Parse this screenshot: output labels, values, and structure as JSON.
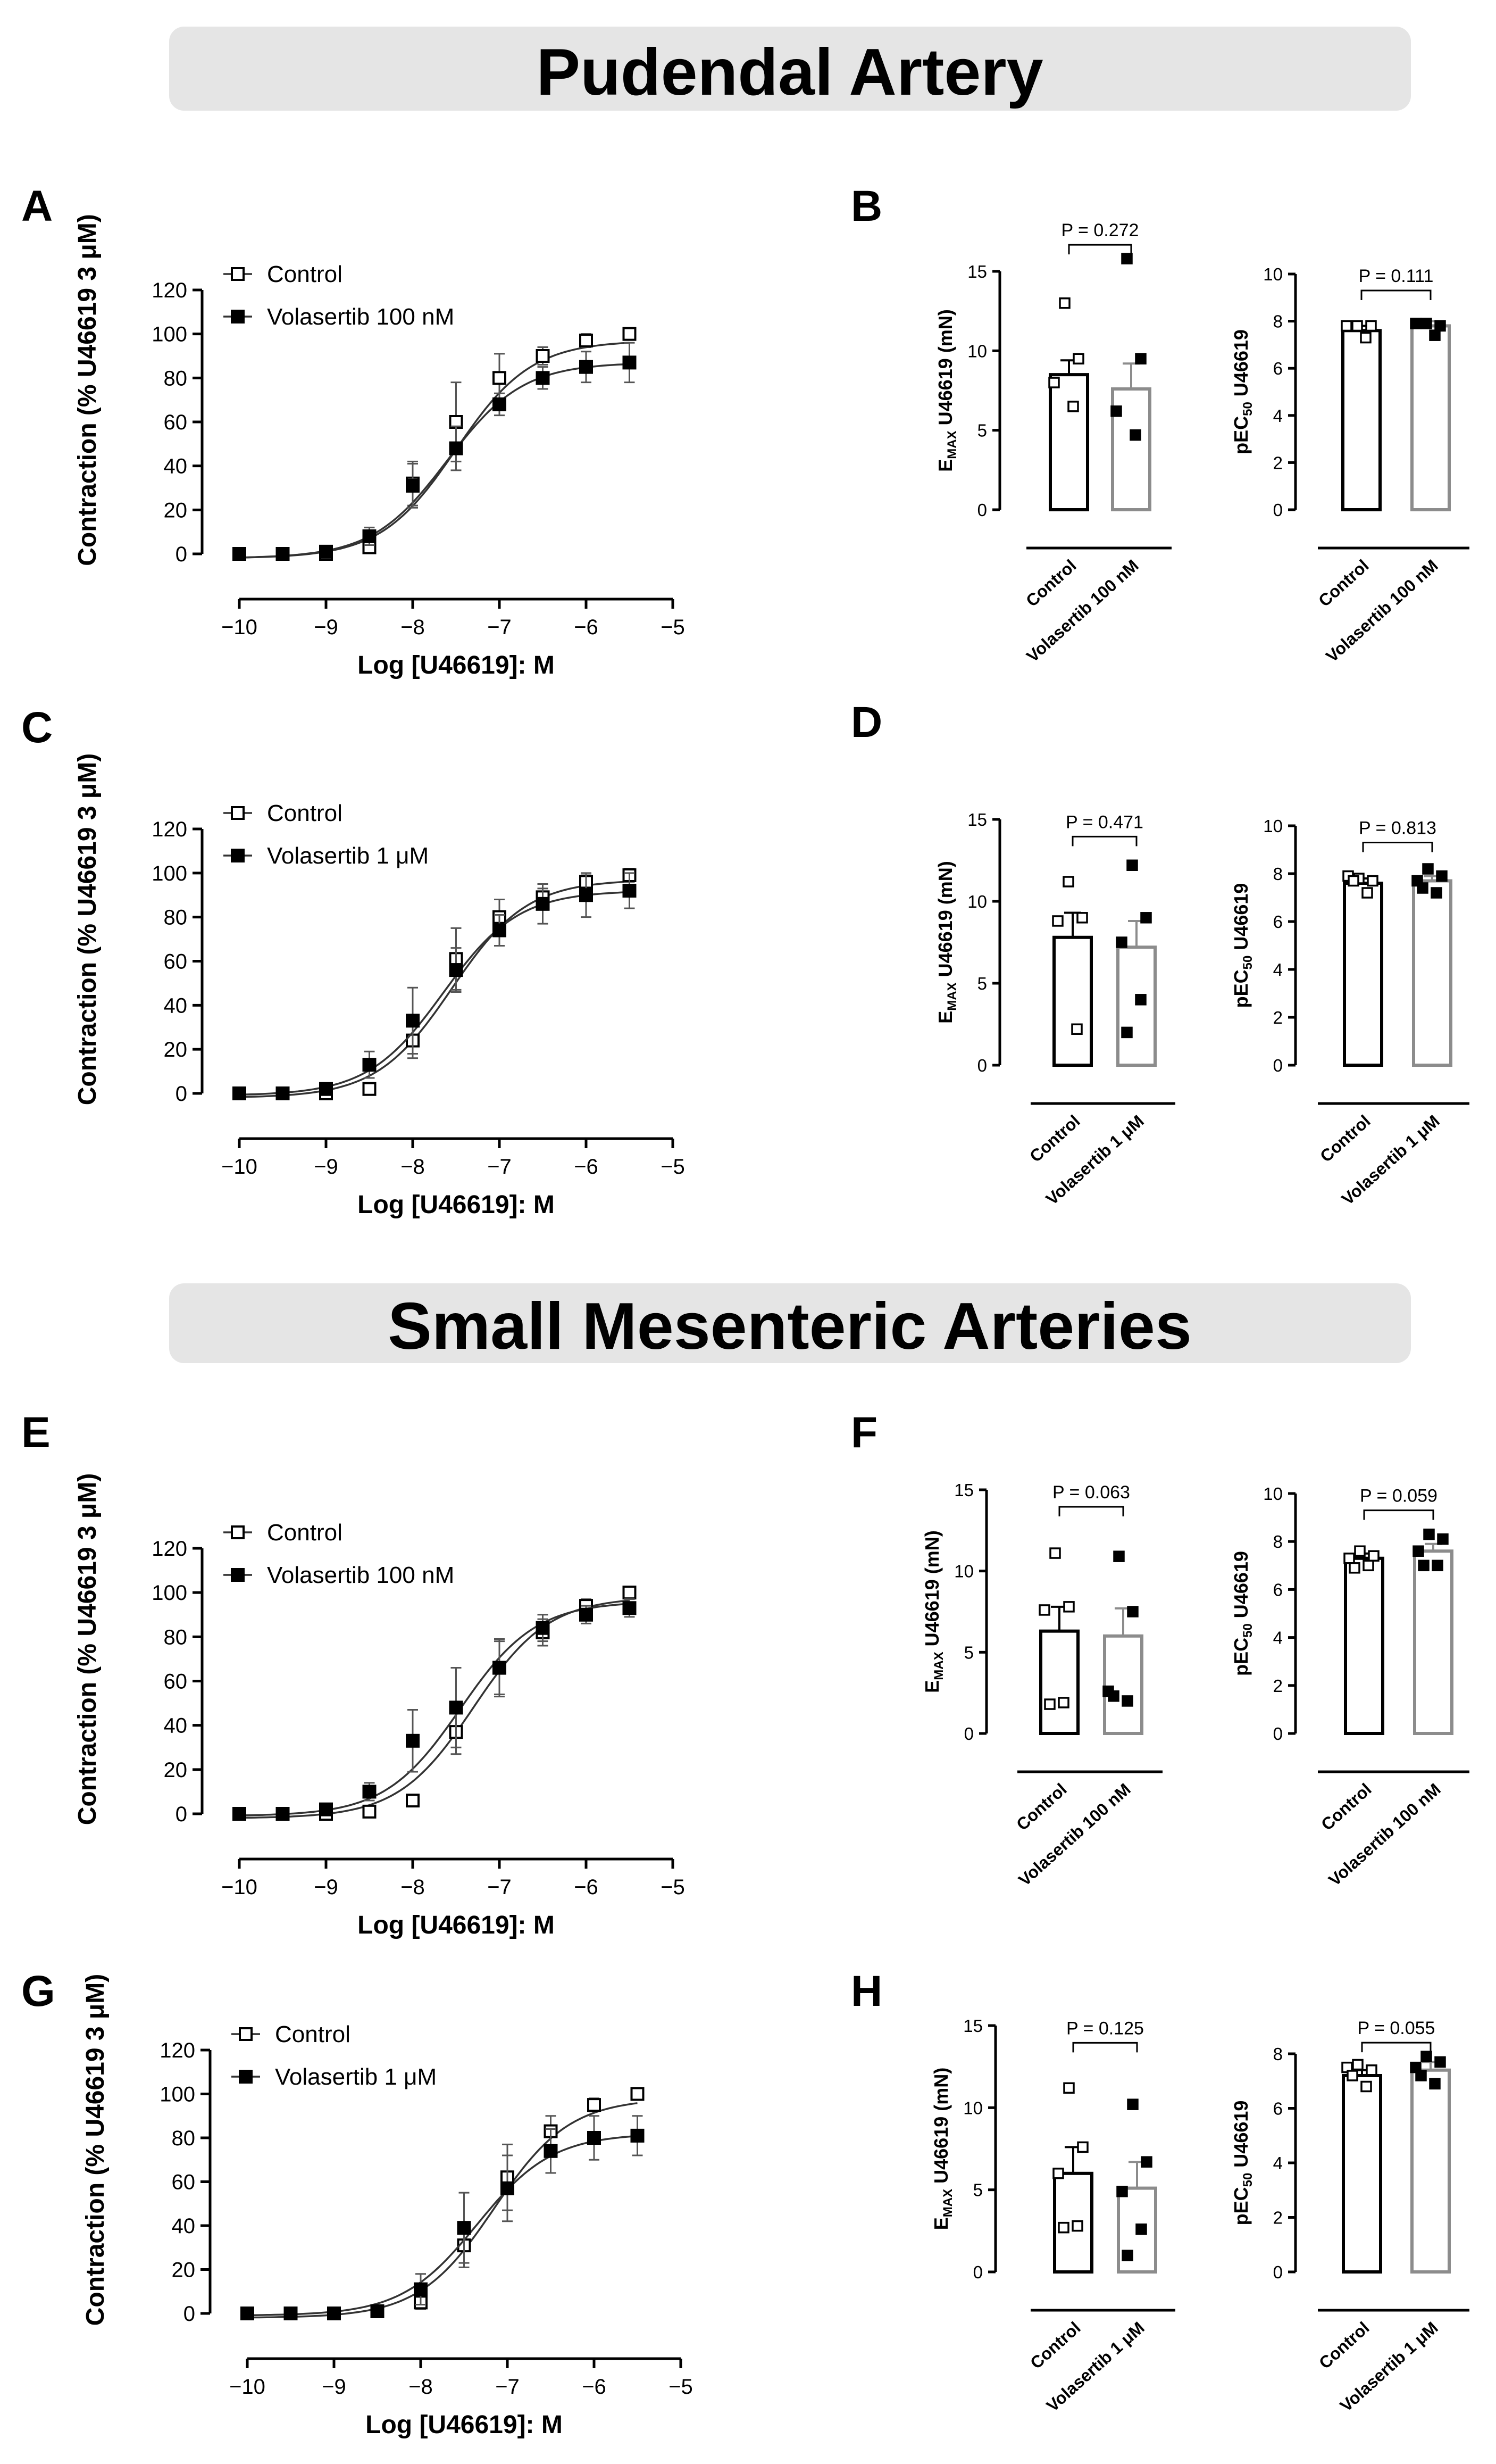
{
  "banners": [
    "Pudendal Artery",
    "Small Mesenteric Arteries"
  ],
  "x_ticks": [
    "−10",
    "−9",
    "−8",
    "−7",
    "−6",
    "−5"
  ],
  "chart_data": [
    {
      "panel": "A",
      "type": "line",
      "ylabel": "Contraction (% U46619 3 μM)",
      "xlabel": "Log [U46619]: M",
      "xlim": [
        -10,
        -5
      ],
      "ylim": [
        0,
        120
      ],
      "yticks": [
        0,
        20,
        40,
        60,
        80,
        100,
        120
      ],
      "legend": "top-left",
      "series": [
        {
          "name": "Control",
          "marker": "open-square",
          "top": 97,
          "bottom": -2,
          "logec50": -7.5,
          "x": [
            -10,
            -9.5,
            -9,
            -8.5,
            -8,
            -7.5,
            -7,
            -6.5,
            -6,
            -5.5
          ],
          "y": [
            0,
            0,
            0,
            3,
            32,
            60,
            80,
            90,
            97,
            100
          ],
          "err": [
            1,
            1,
            1,
            2,
            10,
            18,
            11,
            4,
            3,
            2
          ]
        },
        {
          "name": "Volasertib 100 nM",
          "marker": "filled-square",
          "top": 87,
          "bottom": -2,
          "logec50": -7.6,
          "x": [
            -10,
            -9.5,
            -9,
            -8.5,
            -8,
            -7.5,
            -7,
            -6.5,
            -6,
            -5.5
          ],
          "y": [
            0,
            0,
            1,
            8,
            31,
            48,
            68,
            80,
            85,
            87
          ],
          "err": [
            1,
            1,
            1,
            4,
            10,
            10,
            5,
            5,
            7,
            9
          ]
        }
      ]
    },
    {
      "panel": "B",
      "type": "bar",
      "categories": [
        "Control",
        "Volasertib 100 nM"
      ],
      "subcharts": [
        {
          "ylabel": "EMAX U46619 (mN)",
          "ylim": [
            0,
            15
          ],
          "yticks": [
            0,
            5,
            10,
            15
          ],
          "p_value": "P = 0.272",
          "values": [
            8.5,
            7.6
          ],
          "errors": [
            0.9,
            1.6
          ],
          "points": [
            [
              13.0,
              9.5,
              8.0,
              6.5
            ],
            [
              15.8,
              9.5,
              6.2,
              4.7
            ]
          ]
        },
        {
          "ylabel": "pEC50 U46619",
          "ylim": [
            0,
            10
          ],
          "yticks": [
            0,
            2,
            4,
            6,
            8,
            10
          ],
          "p_value": "P = 0.111",
          "values": [
            7.6,
            7.8
          ],
          "errors": [
            0.2,
            0.2
          ],
          "points": [
            [
              7.8,
              7.8,
              7.8,
              7.3
            ],
            [
              7.9,
              7.8,
              7.9,
              7.4
            ]
          ]
        }
      ]
    },
    {
      "panel": "C",
      "type": "line",
      "ylabel": "Contraction (% U46619 3 μM)",
      "xlabel": "Log [U46619]: M",
      "xlim": [
        -10,
        -5
      ],
      "ylim": [
        0,
        120
      ],
      "yticks": [
        0,
        20,
        40,
        60,
        80,
        100,
        120
      ],
      "legend": "top-left",
      "series": [
        {
          "name": "Control",
          "marker": "open-square",
          "top": 97,
          "bottom": -2,
          "logec50": -7.55,
          "x": [
            -10,
            -9.5,
            -9,
            -8.5,
            -8,
            -7.5,
            -7,
            -6.5,
            -6,
            -5.5
          ],
          "y": [
            0,
            0,
            0,
            2,
            24,
            61,
            80,
            89,
            96,
            99
          ],
          "err": [
            1,
            1,
            1,
            1,
            8,
            14,
            8,
            4,
            3,
            3
          ]
        },
        {
          "name": "Volasertib 1 μM",
          "marker": "filled-square",
          "top": 92,
          "bottom": -1,
          "logec50": -7.65,
          "x": [
            -10,
            -9.5,
            -9,
            -8.5,
            -8,
            -7.5,
            -7,
            -6.5,
            -6,
            -5.5
          ],
          "y": [
            0,
            0,
            2,
            13,
            33,
            56,
            74,
            86,
            90,
            92
          ],
          "err": [
            1,
            1,
            2,
            6,
            15,
            10,
            7,
            9,
            10,
            8
          ]
        }
      ]
    },
    {
      "panel": "D",
      "type": "bar",
      "categories": [
        "Control",
        "Volasertib 1 μM"
      ],
      "subcharts": [
        {
          "ylabel": "EMAX U46619 (mN)",
          "ylim": [
            0,
            15
          ],
          "yticks": [
            0,
            5,
            10,
            15
          ],
          "p_value": "P = 0.471",
          "values": [
            7.8,
            7.2
          ],
          "errors": [
            1.5,
            1.6
          ],
          "points": [
            [
              11.2,
              9.0,
              8.8,
              2.2
            ],
            [
              12.2,
              9.0,
              7.5,
              4.0,
              2.0
            ]
          ]
        },
        {
          "ylabel": "pEC50 U46619",
          "ylim": [
            0,
            10
          ],
          "yticks": [
            0,
            2,
            4,
            6,
            8,
            10
          ],
          "p_value": "P = 0.813",
          "values": [
            7.6,
            7.7
          ],
          "errors": [
            0.2,
            0.2
          ],
          "points": [
            [
              7.8,
              7.7,
              7.9,
              7.2,
              7.7
            ],
            [
              8.2,
              7.9,
              7.7,
              7.2,
              7.4
            ]
          ]
        }
      ]
    },
    {
      "panel": "E",
      "type": "line",
      "ylabel": "Contraction (% U46619 3 μM)",
      "xlabel": "Log [U46619]: M",
      "xlim": [
        -10,
        -5
      ],
      "ylim": [
        0,
        120
      ],
      "yticks": [
        0,
        20,
        40,
        60,
        80,
        100,
        120
      ],
      "legend": "top-left",
      "series": [
        {
          "name": "Control",
          "marker": "open-square",
          "top": 98,
          "bottom": -2,
          "logec50": -7.3,
          "x": [
            -10,
            -9.5,
            -9,
            -8.5,
            -8,
            -7.5,
            -7,
            -6.5,
            -6,
            -5.5
          ],
          "y": [
            0,
            0,
            0,
            1,
            6,
            37,
            66,
            82,
            94,
            100
          ],
          "err": [
            1,
            1,
            1,
            1,
            2,
            10,
            13,
            6,
            3,
            2
          ]
        },
        {
          "name": "Volasertib 100 nM",
          "marker": "filled-square",
          "top": 96,
          "bottom": -1,
          "logec50": -7.45,
          "x": [
            -10,
            -9.5,
            -9,
            -8.5,
            -8,
            -7.5,
            -7,
            -6.5,
            -6,
            -5.5
          ],
          "y": [
            0,
            0,
            2,
            10,
            33,
            48,
            66,
            84,
            90,
            93
          ],
          "err": [
            1,
            1,
            1,
            4,
            14,
            18,
            12,
            6,
            4,
            4
          ]
        }
      ]
    },
    {
      "panel": "F",
      "type": "bar",
      "categories": [
        "Control",
        "Volasertib 100 nM"
      ],
      "subcharts": [
        {
          "ylabel": "EMAX U46619 (mN)",
          "ylim": [
            0,
            15
          ],
          "yticks": [
            0,
            5,
            10,
            15
          ],
          "p_value": "P = 0.063",
          "values": [
            6.3,
            6.0
          ],
          "errors": [
            1.5,
            1.7
          ],
          "points": [
            [
              11.1,
              7.8,
              7.6,
              1.9,
              1.8
            ],
            [
              10.9,
              7.5,
              2.6,
              2.0,
              2.3
            ]
          ]
        },
        {
          "ylabel": "pEC50 U46619",
          "ylim": [
            0,
            10
          ],
          "yticks": [
            0,
            2,
            4,
            6,
            8,
            10
          ],
          "p_value": "P = 0.059",
          "values": [
            7.3,
            7.6
          ],
          "errors": [
            0.2,
            0.3
          ],
          "points": [
            [
              7.6,
              7.4,
              7.3,
              7.0,
              6.9
            ],
            [
              8.3,
              8.1,
              7.6,
              7.0,
              7.0
            ]
          ]
        }
      ]
    },
    {
      "panel": "G",
      "type": "line",
      "ylabel": "Contraction (% U46619 3 μM)",
      "xlabel": "Log [U46619]: M",
      "xlim": [
        -10,
        -5
      ],
      "ylim": [
        0,
        120
      ],
      "yticks": [
        0,
        20,
        40,
        60,
        80,
        100,
        120
      ],
      "legend": "top-left",
      "series": [
        {
          "name": "Control",
          "marker": "open-square",
          "top": 98,
          "bottom": -2,
          "logec50": -7.15,
          "x": [
            -10,
            -9.5,
            -9,
            -8.5,
            -8,
            -7.5,
            -7,
            -6.5,
            -6,
            -5.5
          ],
          "y": [
            0,
            0,
            0,
            1,
            5,
            31,
            62,
            83,
            95,
            100
          ],
          "err": [
            1,
            1,
            1,
            1,
            3,
            10,
            15,
            7,
            3,
            2
          ]
        },
        {
          "name": "Volasertib 1 μM",
          "marker": "filled-square",
          "top": 82,
          "bottom": -1,
          "logec50": -7.35,
          "x": [
            -10,
            -9.5,
            -9,
            -8.5,
            -8,
            -7.5,
            -7,
            -6.5,
            -6,
            -5.5
          ],
          "y": [
            0,
            0,
            0,
            1,
            11,
            39,
            57,
            74,
            80,
            81
          ],
          "err": [
            1,
            1,
            1,
            1,
            7,
            16,
            15,
            10,
            10,
            9
          ]
        }
      ]
    },
    {
      "panel": "H",
      "type": "bar",
      "categories": [
        "Control",
        "Volasertib 1 μM"
      ],
      "subcharts": [
        {
          "ylabel": "EMAX U46619 (mN)",
          "ylim": [
            0,
            15
          ],
          "yticks": [
            0,
            5,
            10,
            15
          ],
          "p_value": "P = 0.125",
          "values": [
            6.0,
            5.1
          ],
          "errors": [
            1.6,
            1.6
          ],
          "points": [
            [
              11.2,
              7.6,
              6.0,
              2.8,
              2.7
            ],
            [
              10.2,
              6.7,
              4.9,
              2.6,
              1.0
            ]
          ]
        },
        {
          "ylabel": "pEC50 U46619",
          "ylim": [
            0,
            8
          ],
          "yticks": [
            0,
            2,
            4,
            6,
            8
          ],
          "p_value": "P = 0.055",
          "values": [
            7.2,
            7.4
          ],
          "errors": [
            0.2,
            0.3
          ],
          "points": [
            [
              7.6,
              7.4,
              7.5,
              6.8,
              7.2
            ],
            [
              7.9,
              7.7,
              7.5,
              6.9,
              7.2
            ]
          ]
        }
      ]
    }
  ]
}
